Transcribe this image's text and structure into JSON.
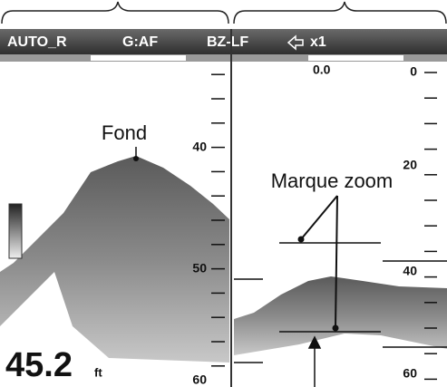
{
  "header": {
    "mode": "AUTO_R",
    "gain": "G:AF",
    "zoom_mode": "BZ-LF",
    "range": "x1"
  },
  "left_panel": {
    "scale_labels": [
      "40",
      "50",
      "60"
    ],
    "depth": "45.2",
    "depth_unit": "ft",
    "annotation": "Fond"
  },
  "right_panel": {
    "zoom_top": "0.0",
    "scale_labels": [
      "0",
      "20",
      "40",
      "60"
    ],
    "annotation": "Marque zoom"
  }
}
